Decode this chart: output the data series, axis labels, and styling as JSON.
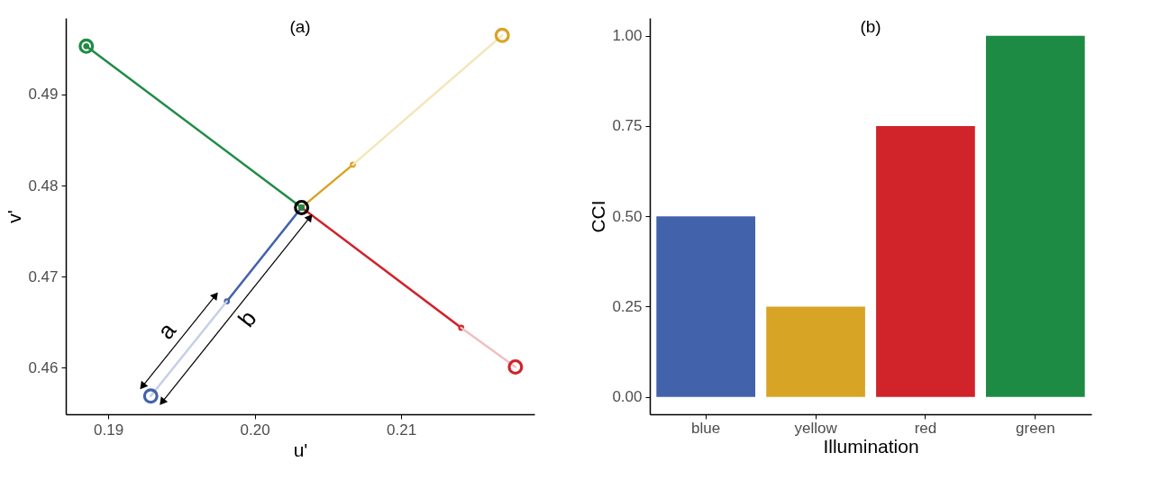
{
  "chart_data": [
    {
      "type": "line",
      "title": "(a)",
      "xlabel": "u'",
      "ylabel": "v'",
      "xlim": [
        0.1871,
        0.2191
      ],
      "ylim": [
        0.4549,
        0.4984
      ],
      "xticks": [
        {
          "value": 0.19,
          "label": "0.19"
        },
        {
          "value": 0.2,
          "label": "0.20"
        },
        {
          "value": 0.21,
          "label": "0.21"
        }
      ],
      "yticks": [
        0.46,
        0.47,
        0.48,
        0.49
      ],
      "grid": false,
      "legend": false,
      "line_style": "solid",
      "series": [
        {
          "type": "line",
          "color": "#4262ab",
          "marker": "circle",
          "x": [
            0.2032,
            0.1981
          ],
          "values": [
            0.4776,
            0.4673
          ]
        },
        {
          "type": "line",
          "color": "#c5cfe8",
          "marker": "none",
          "x": [
            0.1981,
            0.1929
          ],
          "values": [
            0.4673,
            0.4569
          ]
        },
        {
          "type": "line",
          "color": "#d8a426",
          "marker": "circle",
          "x": [
            0.2032,
            0.2067
          ],
          "values": [
            0.4776,
            0.4823
          ]
        },
        {
          "type": "line",
          "color": "#f5e6b8",
          "marker": "none",
          "x": [
            0.2067,
            0.2169
          ],
          "values": [
            0.4823,
            0.4965
          ]
        },
        {
          "type": "line",
          "color": "#d0232a",
          "marker": "circle",
          "x": [
            0.2032,
            0.2141
          ],
          "values": [
            0.4776,
            0.4644
          ]
        },
        {
          "type": "line",
          "color": "#f0c0c0",
          "marker": "none",
          "x": [
            0.2141,
            0.2178
          ],
          "values": [
            0.4644,
            0.4601
          ]
        },
        {
          "type": "line",
          "color": "#1e8b45",
          "marker": "circle",
          "x": [
            0.2032,
            0.1885
          ],
          "values": [
            0.4776,
            0.4953
          ]
        },
        {
          "type": "scatter",
          "color": "#4262ab",
          "marker": "circle",
          "x": [
            0.1929
          ],
          "values": [
            0.4569
          ]
        },
        {
          "type": "scatter",
          "color": "#d8a426",
          "marker": "circle",
          "x": [
            0.2169
          ],
          "values": [
            0.4965
          ]
        },
        {
          "type": "scatter",
          "color": "#d0232a",
          "marker": "circle",
          "x": [
            0.2178
          ],
          "values": [
            0.4601
          ]
        },
        {
          "type": "scatter",
          "color": "#1e8b45",
          "marker": "circle",
          "x": [
            0.1885
          ],
          "values": [
            0.4953
          ]
        },
        {
          "type": "scatter",
          "color": "#000000",
          "marker": "circle",
          "x": [
            0.2032
          ],
          "values": [
            0.4776
          ]
        }
      ],
      "annotations": [
        "a",
        "b"
      ]
    },
    {
      "type": "bar",
      "title": "(b)",
      "xlabel": "Illumination",
      "ylabel": "CCI",
      "categories": [
        "blue",
        "yellow",
        "red",
        "green"
      ],
      "values": [
        0.5,
        0.25,
        0.75,
        1.0
      ],
      "colors": [
        "#4262ab",
        "#d8a426",
        "#d0232a",
        "#1e8b45"
      ],
      "ylim": [
        -0.048,
        1.049
      ],
      "yticks": [
        {
          "value": 0,
          "label": "0.00"
        },
        {
          "value": 0.25,
          "label": "0.25"
        },
        {
          "value": 0.5,
          "label": "0.50"
        },
        {
          "value": 0.75,
          "label": "0.75"
        },
        {
          "value": 1,
          "label": "1.00"
        }
      ],
      "grid": false,
      "legend": false
    }
  ]
}
